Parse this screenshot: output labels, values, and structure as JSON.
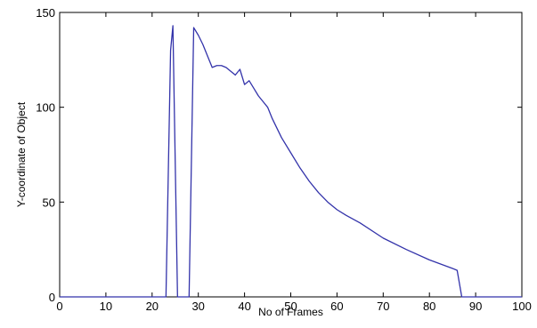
{
  "chart_data": {
    "type": "line",
    "xlabel": "No of Frames",
    "ylabel": "Y-coordinate of Object",
    "xlim": [
      0,
      100
    ],
    "ylim": [
      0,
      150
    ],
    "xticks": [
      0,
      10,
      20,
      30,
      40,
      50,
      60,
      70,
      80,
      90,
      100
    ],
    "yticks": [
      0,
      50,
      100,
      150
    ],
    "grid": false,
    "line_color": "#3333aa",
    "series": [
      {
        "x": [
          0,
          23,
          24,
          24.5,
          25.5,
          28,
          29,
          30,
          31,
          32,
          33,
          34,
          35,
          36,
          37,
          38,
          39,
          40,
          41,
          42,
          43,
          44,
          45,
          46,
          48,
          50,
          52,
          54,
          56,
          58,
          60,
          62,
          65,
          70,
          75,
          80,
          85,
          86,
          87,
          100
        ],
        "y": [
          0,
          0,
          130,
          143,
          0,
          0,
          142,
          138,
          133,
          127,
          121,
          122,
          122,
          121,
          119,
          117,
          120,
          112,
          114,
          110,
          106,
          103,
          100,
          94,
          84,
          76,
          68,
          61,
          55,
          50,
          46,
          43,
          39,
          31,
          25,
          19.5,
          15,
          14,
          0,
          0
        ]
      }
    ]
  }
}
